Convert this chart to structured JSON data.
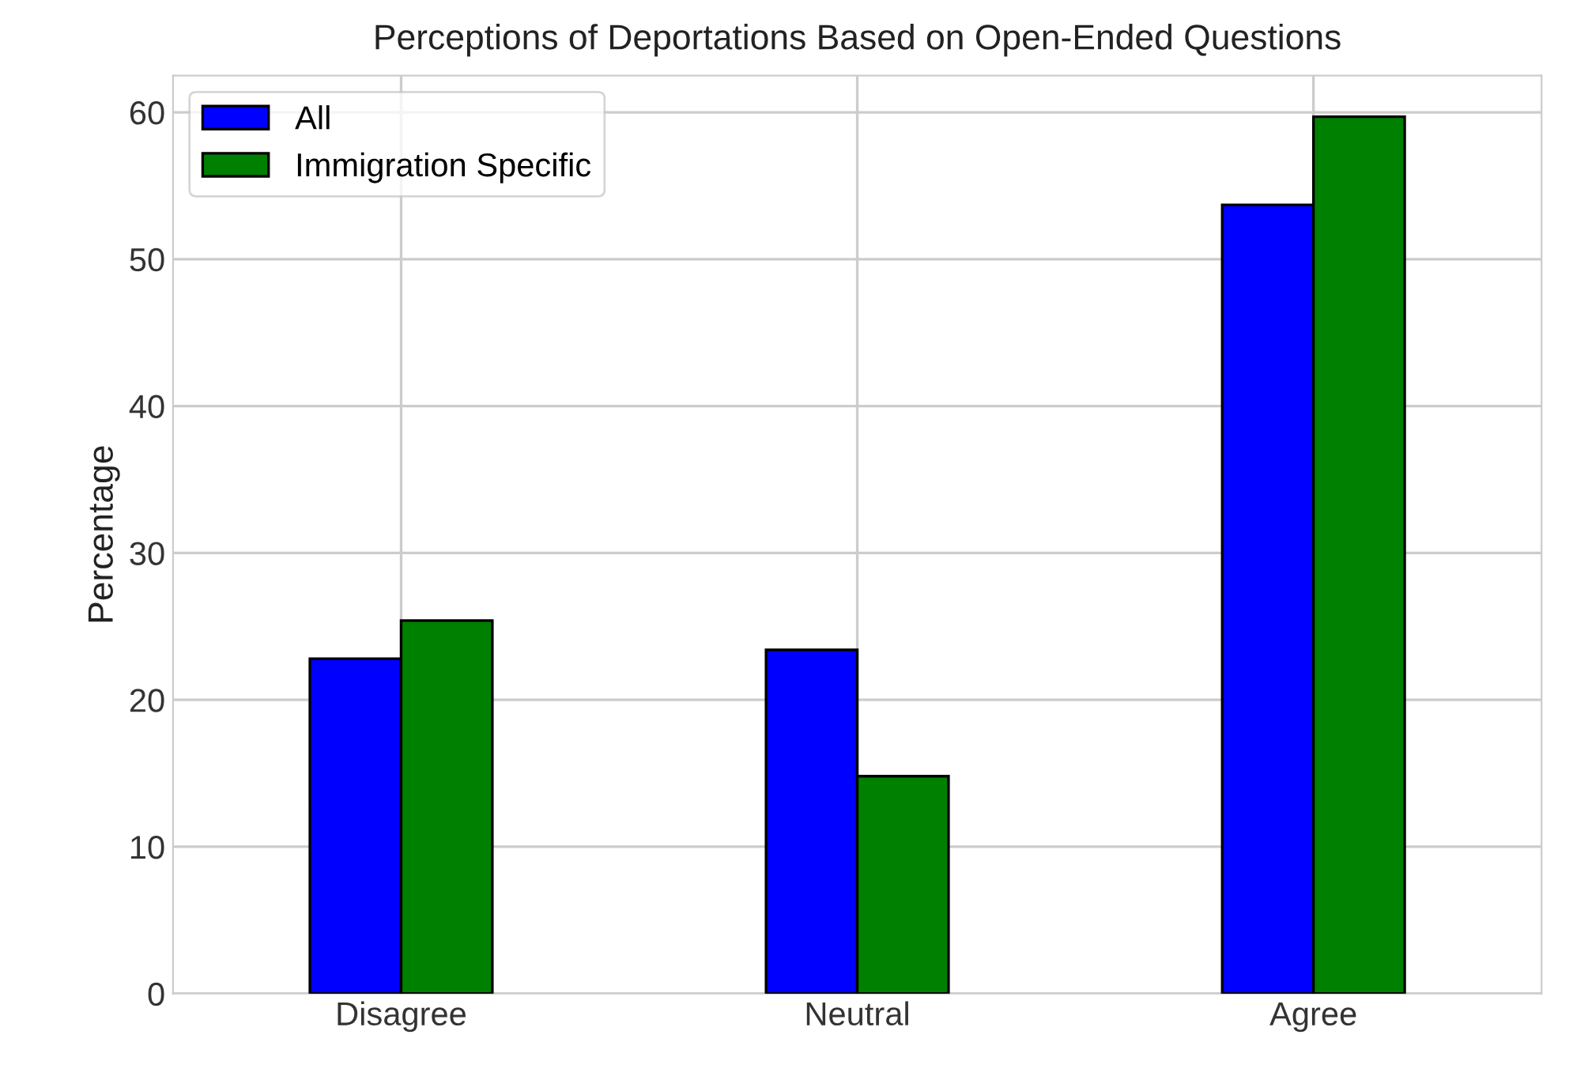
{
  "chart_data": {
    "type": "bar",
    "title": "Perceptions of Deportations Based on Open-Ended Questions",
    "ylabel": "Percentage",
    "categories": [
      "Disagree",
      "Neutral",
      "Agree"
    ],
    "series": [
      {
        "name": "All",
        "color": "#0000ff",
        "values": [
          22.8,
          23.4,
          53.7
        ]
      },
      {
        "name": "Immigration Specific",
        "color": "#008000",
        "values": [
          25.4,
          14.8,
          59.7
        ]
      }
    ],
    "ylim": [
      0,
      62.5
    ],
    "yticks": [
      0,
      10,
      20,
      30,
      40,
      50,
      60
    ],
    "grid": true,
    "legend": "top left"
  }
}
